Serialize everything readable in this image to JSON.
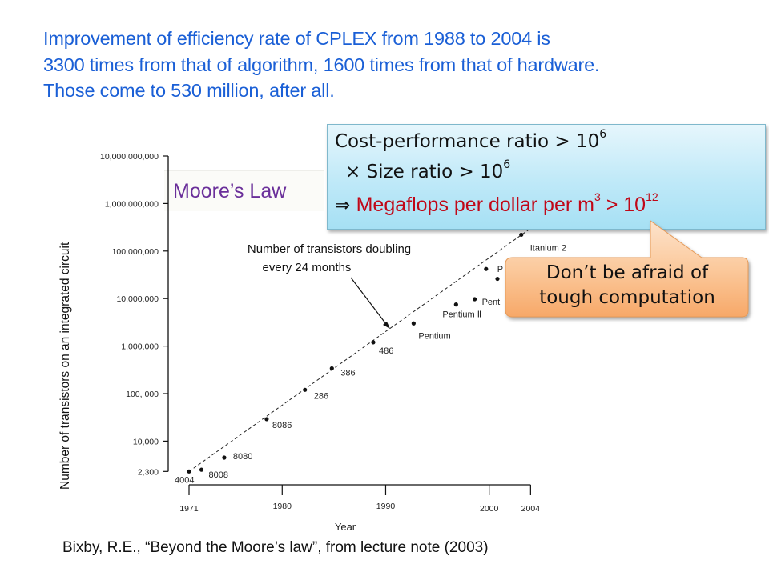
{
  "heading": {
    "lines": [
      "Improvement of efficiency rate of CPLEX from 1988 to 2004 is",
      "3300 times from that of algorithm, 1600 times from that of hardware.",
      "Those come to 530 million, after all."
    ]
  },
  "chart_data": {
    "type": "scatter",
    "title": "Moore’s Law",
    "xlabel": "Year",
    "ylabel": "Number  of transistors on an integrated circuit",
    "yscale": "log",
    "xlim": [
      1971,
      2004
    ],
    "ylim": [
      2300,
      10000000000
    ],
    "x_ticks": [
      {
        "value": 1971,
        "label": "1971"
      },
      {
        "value": 1980,
        "label": "1980"
      },
      {
        "value": 1990,
        "label": "1990"
      },
      {
        "value": 2000,
        "label": "2000"
      },
      {
        "value": 2004,
        "label": "2004"
      }
    ],
    "y_ticks": [
      {
        "value": 10000000000,
        "label": "10,000,000,000"
      },
      {
        "value": 1000000000,
        "label": "1,000,000,000"
      },
      {
        "value": 100000000,
        "label": "100,000,000"
      },
      {
        "value": 10000000,
        "label": "10,000,000"
      },
      {
        "value": 1000000,
        "label": "1,000,000"
      },
      {
        "value": 100000,
        "label": "100, 000"
      },
      {
        "value": 10000,
        "label": "10,000"
      },
      {
        "value": 2300,
        "label": "2,300"
      }
    ],
    "points": [
      {
        "label": "4004",
        "x": 1971,
        "y": 2300
      },
      {
        "label": "8008",
        "x": 1972.2,
        "y": 2500
      },
      {
        "label": "8080",
        "x": 1974.4,
        "y": 4500
      },
      {
        "label": "8086",
        "x": 1978.5,
        "y": 29000
      },
      {
        "label": "286",
        "x": 1982.2,
        "y": 120000
      },
      {
        "label": "386",
        "x": 1984.8,
        "y": 340000
      },
      {
        "label": "486",
        "x": 1988.8,
        "y": 1200000
      },
      {
        "label": "Pentium",
        "x": 1992.7,
        "y": 3000000
      },
      {
        "label": "Pentium Ⅱ",
        "x": 1996.8,
        "y": 7500000
      },
      {
        "label": "Pent",
        "x": 1998.6,
        "y": 9700000
      },
      {
        "label": "P",
        "x": 1999.7,
        "y": 42000000
      },
      {
        "label": "",
        "x": 2000.8,
        "y": 26000000
      },
      {
        "label": "Itanium 2",
        "x": 2003.1,
        "y": 220000000
      }
    ],
    "trend_line": {
      "label": "Number  of transistors doubling every 24 months",
      "from": {
        "x": 1971,
        "y": 2300
      },
      "to": {
        "x": 2004,
        "y": 300000000
      }
    },
    "annotation": [
      "Number  of transistors doubling",
      "every 24 months"
    ],
    "grid": false
  },
  "info_box": {
    "line1": "Cost-performance ratio > 10",
    "line1_sup": "6",
    "line2": "×  Size ratio > 10",
    "line2_sup": "6",
    "line3_arrow": "⇒ ",
    "line3": "Megaflops per dollar per m",
    "line3_sup": "3",
    "line3_rest": " > 10",
    "line3_sup2": "12"
  },
  "callout": {
    "line1": "Don’t be afraid of",
    "line2": "tough computation"
  },
  "citation": "Bixby, R.E., “Beyond the Moore’s  law”,  from lecture note (2003)",
  "colors": {
    "heading": "#1a5fd6",
    "moore_title": "#6a2f9a",
    "highlight_red": "#c00818",
    "callout_fill": "#f9c597"
  }
}
